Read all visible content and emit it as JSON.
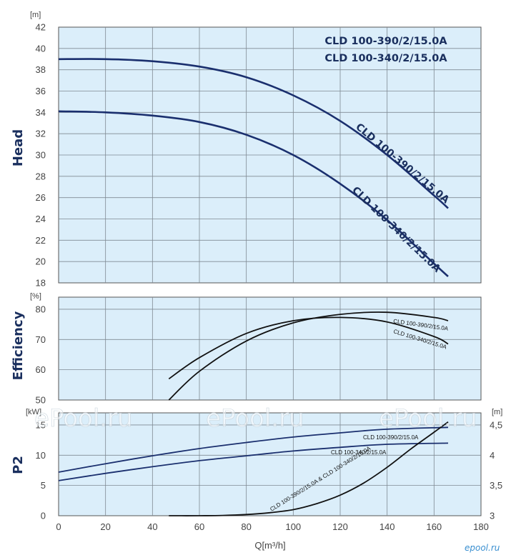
{
  "chart_data": [
    {
      "type": "line",
      "id": "head",
      "title_lines": [
        "CLD 100-390/2/15.0A",
        "CLD 100-340/2/15.0A"
      ],
      "ylabel": "Head",
      "yunit": "[m]",
      "ylim": [
        18,
        42
      ],
      "yticks": [
        18,
        20,
        22,
        24,
        26,
        28,
        30,
        32,
        34,
        36,
        38,
        40,
        42
      ],
      "xlim": [
        0,
        180
      ],
      "grid": true,
      "series": [
        {
          "name": "CLD 100-390/2/15.0A",
          "color": "#1a2f6e",
          "x": [
            0,
            20,
            40,
            60,
            80,
            100,
            120,
            140,
            160,
            166
          ],
          "y": [
            39.0,
            39.0,
            38.8,
            38.3,
            37.3,
            35.6,
            33.2,
            30.0,
            26.2,
            25.0
          ]
        },
        {
          "name": "CLD 100-340/2/15.0A",
          "color": "#1a2f6e",
          "x": [
            0,
            20,
            40,
            60,
            80,
            100,
            120,
            140,
            160,
            166
          ],
          "y": [
            34.1,
            34.0,
            33.7,
            33.1,
            31.9,
            30.0,
            27.3,
            23.9,
            19.8,
            18.6
          ]
        }
      ]
    },
    {
      "type": "line",
      "id": "efficiency",
      "ylabel": "Efficiency",
      "yunit": "[%]",
      "ylim": [
        50,
        84
      ],
      "yticks": [
        50,
        60,
        70,
        80
      ],
      "xlim": [
        0,
        180
      ],
      "grid": true,
      "series": [
        {
          "name": "CLD 100-390/2/15.0A",
          "color": "#111111",
          "x": [
            47,
            60,
            80,
            100,
            120,
            140,
            160,
            166
          ],
          "y": [
            50.0,
            59.5,
            69.5,
            75.5,
            78.3,
            79.0,
            77.3,
            76.2
          ]
        },
        {
          "name": "CLD 100-340/2/15.0A",
          "color": "#111111",
          "x": [
            47,
            60,
            80,
            100,
            120,
            140,
            160,
            166
          ],
          "y": [
            57.0,
            64.0,
            72.0,
            76.2,
            77.3,
            75.8,
            71.0,
            68.5
          ]
        }
      ]
    },
    {
      "type": "line",
      "id": "power",
      "ylabel": "P2",
      "yunit": "[kW]",
      "yunit_right": "[m]",
      "ylim": [
        0,
        17
      ],
      "yticks": [
        0,
        5,
        10,
        15
      ],
      "y2lim": [
        3,
        4.7
      ],
      "y2ticks": [
        "3",
        "3,5",
        "4",
        "4,5"
      ],
      "xlim": [
        0,
        180
      ],
      "xticks": [
        0,
        20,
        40,
        60,
        80,
        100,
        120,
        140,
        160,
        180
      ],
      "xlabel": "Q[m³/h]",
      "grid": true,
      "series": [
        {
          "name": "CLD 100-390/2/15.0A",
          "color": "#1a2f6e",
          "x": [
            0,
            20,
            40,
            60,
            80,
            100,
            120,
            140,
            166
          ],
          "y": [
            7.2,
            8.6,
            9.9,
            11.1,
            12.1,
            13.0,
            13.7,
            14.3,
            14.6
          ]
        },
        {
          "name": "CLD 100-340/2/15.0A",
          "color": "#1a2f6e",
          "x": [
            0,
            20,
            40,
            60,
            80,
            100,
            120,
            140,
            166
          ],
          "y": [
            5.8,
            7.0,
            8.1,
            9.1,
            9.9,
            10.7,
            11.3,
            11.8,
            12.0
          ]
        },
        {
          "name": "CLD 100-390/2/15.0A & CLD 100-340/2/15.0A",
          "color": "#111111",
          "axis": "right",
          "x": [
            47,
            60,
            70,
            80,
            90,
            100,
            110,
            120,
            130,
            140,
            150,
            160,
            166
          ],
          "y": [
            3.0,
            3.0,
            3.005,
            3.02,
            3.05,
            3.1,
            3.2,
            3.34,
            3.54,
            3.8,
            4.1,
            4.38,
            4.55
          ]
        }
      ]
    }
  ],
  "watermark": "ePool.ru",
  "logo_text": "epool.ru"
}
